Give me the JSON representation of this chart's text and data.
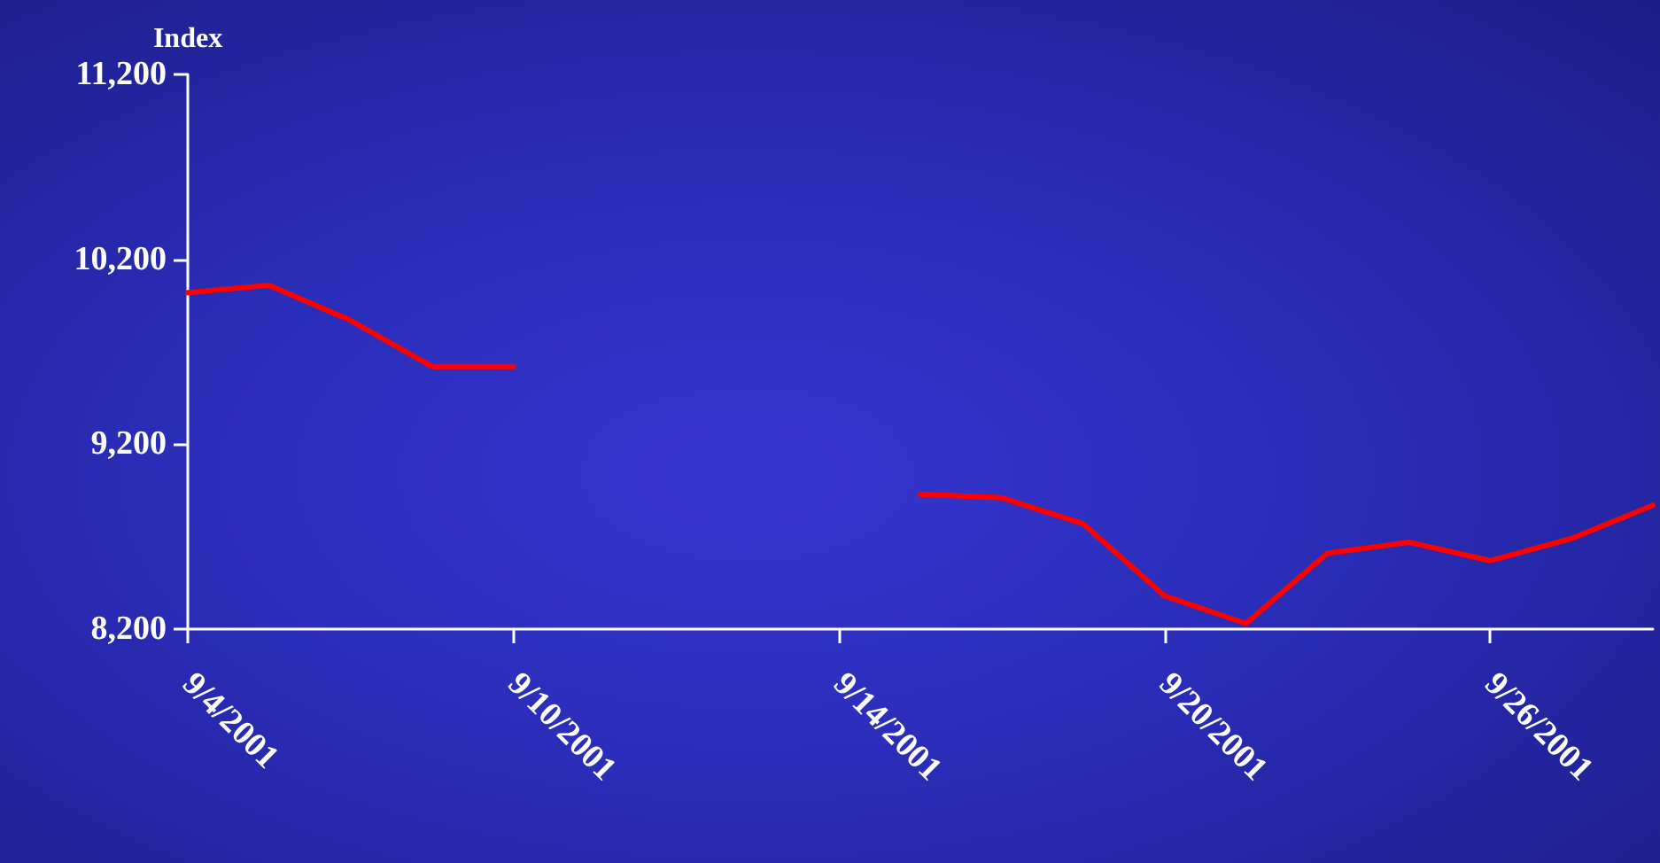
{
  "chart_data": {
    "type": "line",
    "ylabel": "Index",
    "categories": [
      "9/4/2001",
      null,
      null,
      null,
      "9/10/2001",
      null,
      null,
      null,
      "9/14/2001",
      null,
      null,
      null,
      "9/20/2001",
      null,
      null,
      null,
      "9/26/2001",
      null,
      null
    ],
    "series": [
      {
        "color": "#ff0000",
        "values": [
          10020,
          10060,
          9870,
          9620,
          9620,
          null,
          null,
          null,
          null,
          8930,
          8910,
          8770,
          8380,
          8230,
          8610,
          8670,
          8570,
          8690,
          8870
        ]
      }
    ],
    "ylim": [
      8200,
      11200
    ],
    "yticks": [
      {
        "value": 8200,
        "label": "8,200"
      },
      {
        "value": 9200,
        "label": "9,200"
      },
      {
        "value": 10200,
        "label": "10,200"
      },
      {
        "value": 11200,
        "label": "11,200"
      }
    ],
    "grid": false,
    "marker": "none",
    "line_style": "solid"
  }
}
